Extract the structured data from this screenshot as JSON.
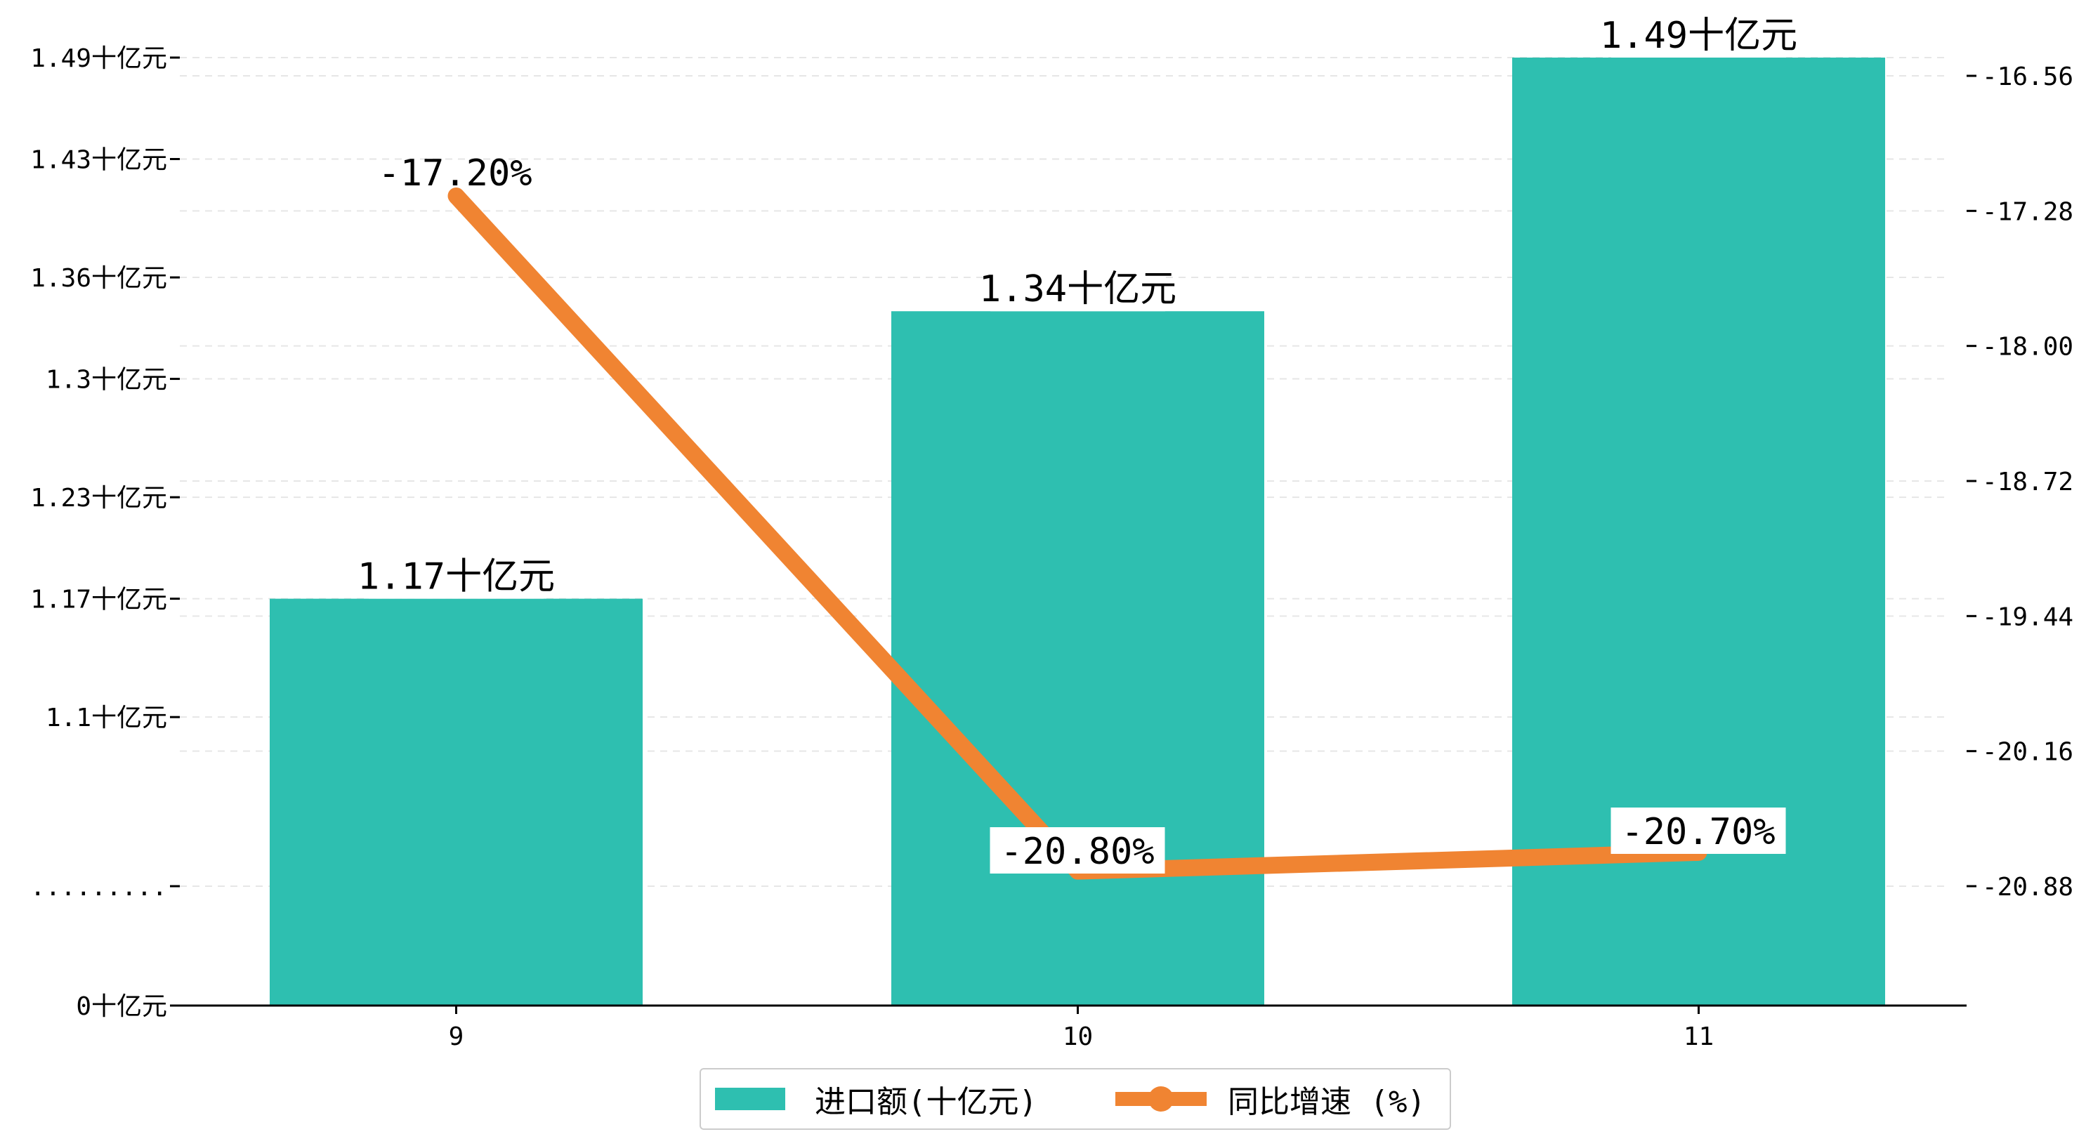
{
  "chart_data": {
    "type": "bar",
    "categories": [
      "9",
      "10",
      "11"
    ],
    "series": [
      {
        "name": "进口额(十亿元)",
        "type": "bar",
        "axis": "left",
        "values": [
          1.17,
          1.34,
          1.49
        ],
        "labels": [
          "1.17十亿元",
          "1.34十亿元",
          "1.49十亿元"
        ]
      },
      {
        "name": "同比增速 (%)",
        "type": "line",
        "axis": "right",
        "values": [
          -17.2,
          -20.8,
          -20.7
        ],
        "labels": [
          "-17.20%",
          "-20.80%",
          "-20.70%"
        ]
      }
    ],
    "y_left": {
      "ticks": [
        {
          "value": 0,
          "label": "0十亿元"
        },
        {
          "value": 1.0,
          "label": "........."
        },
        {
          "value": 1.1,
          "label": "1.1十亿元"
        },
        {
          "value": 1.17,
          "label": "1.17十亿元"
        },
        {
          "value": 1.23,
          "label": "1.23十亿元"
        },
        {
          "value": 1.3,
          "label": "1.3十亿元"
        },
        {
          "value": 1.36,
          "label": "1.36十亿元"
        },
        {
          "value": 1.43,
          "label": "1.43十亿元"
        },
        {
          "value": 1.49,
          "label": "1.49十亿元"
        }
      ],
      "scale": "broken"
    },
    "y_right": {
      "ticks": [
        -20.88,
        -20.16,
        -19.44,
        -18.72,
        -18.0,
        -17.28,
        -16.56
      ],
      "tick_labels": [
        "-20.88",
        "-20.16",
        "-19.44",
        "-18.72",
        "-18.00",
        "-17.28",
        "-16.56"
      ],
      "ylim": [
        -21.5,
        -16.5
      ]
    },
    "grid": true,
    "legend_position": "bottom-center",
    "colors": {
      "bar": "#2ebfb0",
      "line": "#f08432"
    }
  }
}
